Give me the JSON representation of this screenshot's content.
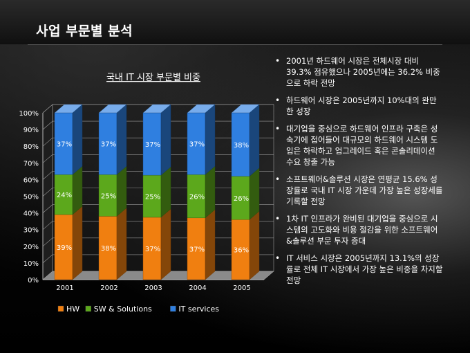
{
  "page": {
    "title": "사업 부문별 분석"
  },
  "bullets": [
    "2001년 하드웨어 시장은 전체시장 대비 39.3% 점유했으나 2005년에는 36.2% 비중으로 하락 전망",
    "하드웨어 시장은 2005년까지 10%대의 완만한 성장",
    "대기업을 중심으로 하드웨어 인프라 구축은 성숙기에 접어들어 대규모의 하드웨어 시스템 도입은 하락하고 업그레이드 혹은 콘솔리데이션 수요 창출 가능",
    "소프트웨어&솔루션 시장은 연평균 15.6% 성장률로 국내 IT 시장 가운데 가장 높은 성장세를 기록할 전망",
    "1차 IT 인프라가 완비된 대기업을 중심으로 시스템의 고도화와 비용 절감을 위한 소프트웨어&솔루션 부문 투자 증대",
    "IT 서비스 시장은 2005년까지 13.1%의 성장률로 전체 IT 시장에서 가장 높은 비중을 차지할 전망"
  ],
  "chart_data": {
    "type": "bar",
    "stacked": "percent",
    "title": "국내 IT 시장 부문별 비중",
    "categories": [
      "2001",
      "2002",
      "2003",
      "2004",
      "2005"
    ],
    "series": [
      {
        "name": "HW",
        "values": [
          39,
          38,
          37,
          37,
          36
        ],
        "labels": [
          "39%",
          "38%",
          "37%",
          "37%",
          "36%"
        ],
        "color": "#f07f10"
      },
      {
        "name": "SW & Solutions",
        "values": [
          24,
          25,
          25,
          26,
          26
        ],
        "labels": [
          "24%",
          "25%",
          "25%",
          "26%",
          "26%"
        ],
        "color": "#5ca81c"
      },
      {
        "name": "IT services",
        "values": [
          37,
          37,
          37,
          37,
          38
        ],
        "labels": [
          "37%",
          "37%",
          "37%",
          "37%",
          "38%"
        ],
        "color": "#2f7fe0"
      }
    ],
    "yticks": [
      "0%",
      "10%",
      "20%",
      "30%",
      "40%",
      "50%",
      "60%",
      "70%",
      "80%",
      "90%",
      "100%"
    ],
    "ylim": [
      0,
      100
    ],
    "legend": "bottom",
    "grid": true
  }
}
